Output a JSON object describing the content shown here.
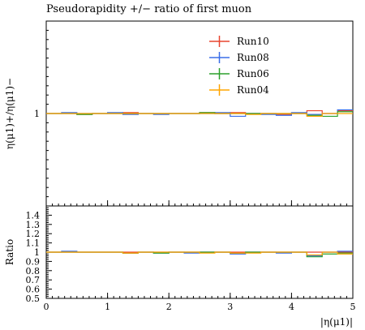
{
  "chart_data": {
    "type": "line",
    "title": "Pseudorapidity +/− ratio of first muon",
    "xlabel": "|η(μ1)|",
    "ylabel": "η(μ1)+/η(μ1)−",
    "ratio_ylabel": "Ratio",
    "xlim": [
      0,
      5
    ],
    "ylim": [
      0.0,
      2.0
    ],
    "ratio_ylim": [
      0.5,
      1.5
    ],
    "x_ticks": [
      "0",
      "1",
      "2",
      "3",
      "4",
      "5"
    ],
    "y_ticks": [
      "1"
    ],
    "ratio_y_ticks": [
      "1.4",
      "1.3",
      "1.2",
      "1.1",
      "1",
      "0.9",
      "0.8",
      "0.7",
      "0.6",
      "0.5"
    ],
    "legend_position": "top-right",
    "bin_edges": [
      0,
      0.25,
      0.5,
      0.75,
      1.0,
      1.25,
      1.5,
      1.75,
      2.0,
      2.25,
      2.5,
      2.75,
      3.0,
      3.25,
      3.5,
      3.75,
      4.0,
      4.25,
      4.5,
      4.75,
      5.0
    ],
    "series": [
      {
        "name": "Run10",
        "color": "#e8452f",
        "values": [
          1.0,
          1.0,
          0.99,
          1.0,
          1.0,
          1.01,
          1.0,
          1.0,
          1.0,
          1.0,
          1.01,
          1.0,
          1.01,
          1.0,
          1.0,
          0.99,
          1.0,
          1.03,
          1.0,
          1.03
        ]
      },
      {
        "name": "Run08",
        "color": "#3b6ee8",
        "values": [
          1.0,
          1.01,
          1.0,
          1.0,
          1.01,
          0.99,
          1.0,
          0.99,
          1.0,
          1.0,
          1.0,
          1.01,
          0.97,
          1.0,
          0.99,
          0.98,
          1.01,
          0.99,
          1.0,
          1.04
        ]
      },
      {
        "name": "Run06",
        "color": "#2ca02c",
        "values": [
          1.0,
          1.0,
          0.99,
          1.0,
          1.0,
          1.0,
          1.0,
          1.0,
          1.0,
          1.0,
          1.01,
          1.0,
          1.0,
          1.0,
          1.0,
          1.0,
          1.0,
          0.98,
          0.97,
          1.02
        ]
      },
      {
        "name": "Run04",
        "color": "#ffa500",
        "values": [
          1.0,
          1.0,
          1.0,
          1.0,
          1.0,
          1.0,
          1.0,
          1.0,
          1.0,
          1.0,
          1.0,
          1.0,
          1.0,
          0.99,
          1.0,
          1.0,
          1.0,
          0.97,
          1.0,
          1.0
        ]
      }
    ],
    "ratio_series": [
      {
        "name": "Run10",
        "color": "#e8452f",
        "values": [
          1.0,
          1.0,
          1.0,
          1.0,
          1.0,
          1.0,
          1.0,
          1.0,
          1.0,
          1.0,
          1.0,
          1.0,
          1.0,
          1.0,
          1.0,
          1.0,
          1.0,
          1.0,
          1.0,
          1.0
        ]
      },
      {
        "name": "Run08",
        "color": "#3b6ee8",
        "values": [
          1.0,
          1.01,
          1.0,
          1.0,
          1.0,
          0.99,
          1.0,
          0.99,
          1.0,
          0.99,
          1.0,
          1.0,
          0.98,
          1.0,
          1.0,
          0.99,
          1.0,
          0.96,
          1.0,
          1.01
        ]
      },
      {
        "name": "Run06",
        "color": "#2ca02c",
        "values": [
          1.0,
          1.0,
          1.0,
          1.0,
          1.0,
          0.99,
          1.0,
          0.99,
          1.0,
          1.0,
          1.0,
          1.0,
          0.99,
          1.0,
          1.0,
          1.0,
          1.0,
          0.95,
          0.98,
          0.99
        ]
      },
      {
        "name": "Run04",
        "color": "#ffa500",
        "values": [
          1.0,
          1.0,
          1.0,
          1.0,
          1.0,
          0.99,
          1.0,
          1.0,
          1.0,
          1.0,
          0.99,
          1.0,
          0.99,
          0.99,
          1.0,
          1.0,
          1.0,
          0.97,
          1.0,
          0.98
        ]
      }
    ]
  }
}
